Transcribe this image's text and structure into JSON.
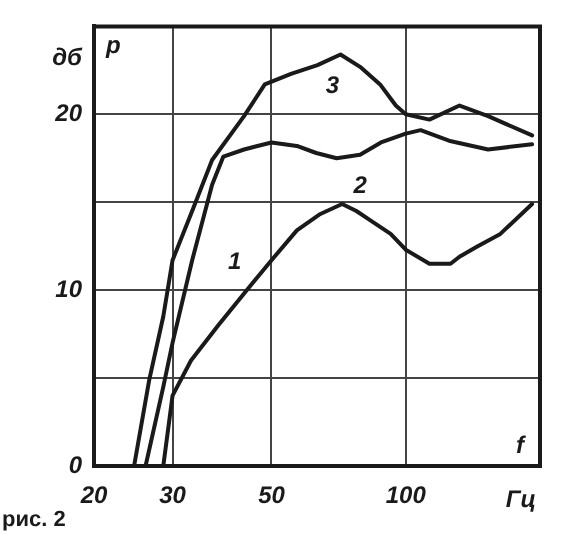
{
  "chart_data": {
    "type": "line",
    "ylabel": "дб",
    "xlabel": "Гц",
    "annotations": [
      "p",
      "f",
      "рис. 2"
    ],
    "log": "x",
    "xlim": [
      20,
      200
    ],
    "xticks": [
      20,
      30,
      50,
      100
    ],
    "ylim": [
      0,
      25
    ],
    "yticks": [
      0,
      {
        "value": 5,
        "label": null
      },
      10,
      {
        "value": 15,
        "label": null
      },
      20,
      {
        "value": 25,
        "label": null
      }
    ],
    "grid": true,
    "legend": false,
    "marker": "none",
    "line_style": "solid",
    "series": [
      {
        "name": "1",
        "color": "#1a1a1a",
        "x": [
          28.6,
          30,
          33,
          38,
          44,
          50,
          57,
          64,
          72,
          77.5,
          83,
          92.5,
          100,
          113,
          126,
          132,
          145,
          163,
          192
        ],
        "values": [
          0,
          4,
          6,
          8,
          10,
          11.7,
          13.4,
          14.3,
          14.9,
          14.5,
          14,
          13.2,
          12.3,
          11.5,
          11.5,
          11.9,
          12.5,
          13.2,
          14.9
        ]
      },
      {
        "name": "2",
        "color": "#1a1a1a",
        "x": [
          26.1,
          28.6,
          30,
          33.2,
          36.8,
          39,
          43.4,
          50,
          57,
          63,
          70,
          79,
          88,
          100,
          108,
          125,
          153,
          192
        ],
        "values": [
          0,
          4.5,
          7,
          11.7,
          16,
          17.6,
          18,
          18.4,
          18.2,
          17.8,
          17.5,
          17.7,
          18.4,
          18.9,
          19.1,
          18.5,
          18,
          18.3
        ]
      },
      {
        "name": "3",
        "color": "#1a1a1a",
        "x": [
          24.6,
          26.6,
          28.6,
          30,
          33.2,
          36.8,
          43.4,
          48.3,
          55.3,
          63.4,
          71.4,
          79,
          87.6,
          95,
          100,
          113,
          132,
          153,
          192
        ],
        "values": [
          0,
          4.9,
          8.5,
          11.7,
          14.5,
          17.4,
          19.9,
          21.7,
          22.3,
          22.8,
          23.4,
          22.7,
          21.7,
          20.5,
          20,
          19.7,
          20.5,
          19.9,
          18.8
        ]
      }
    ]
  }
}
